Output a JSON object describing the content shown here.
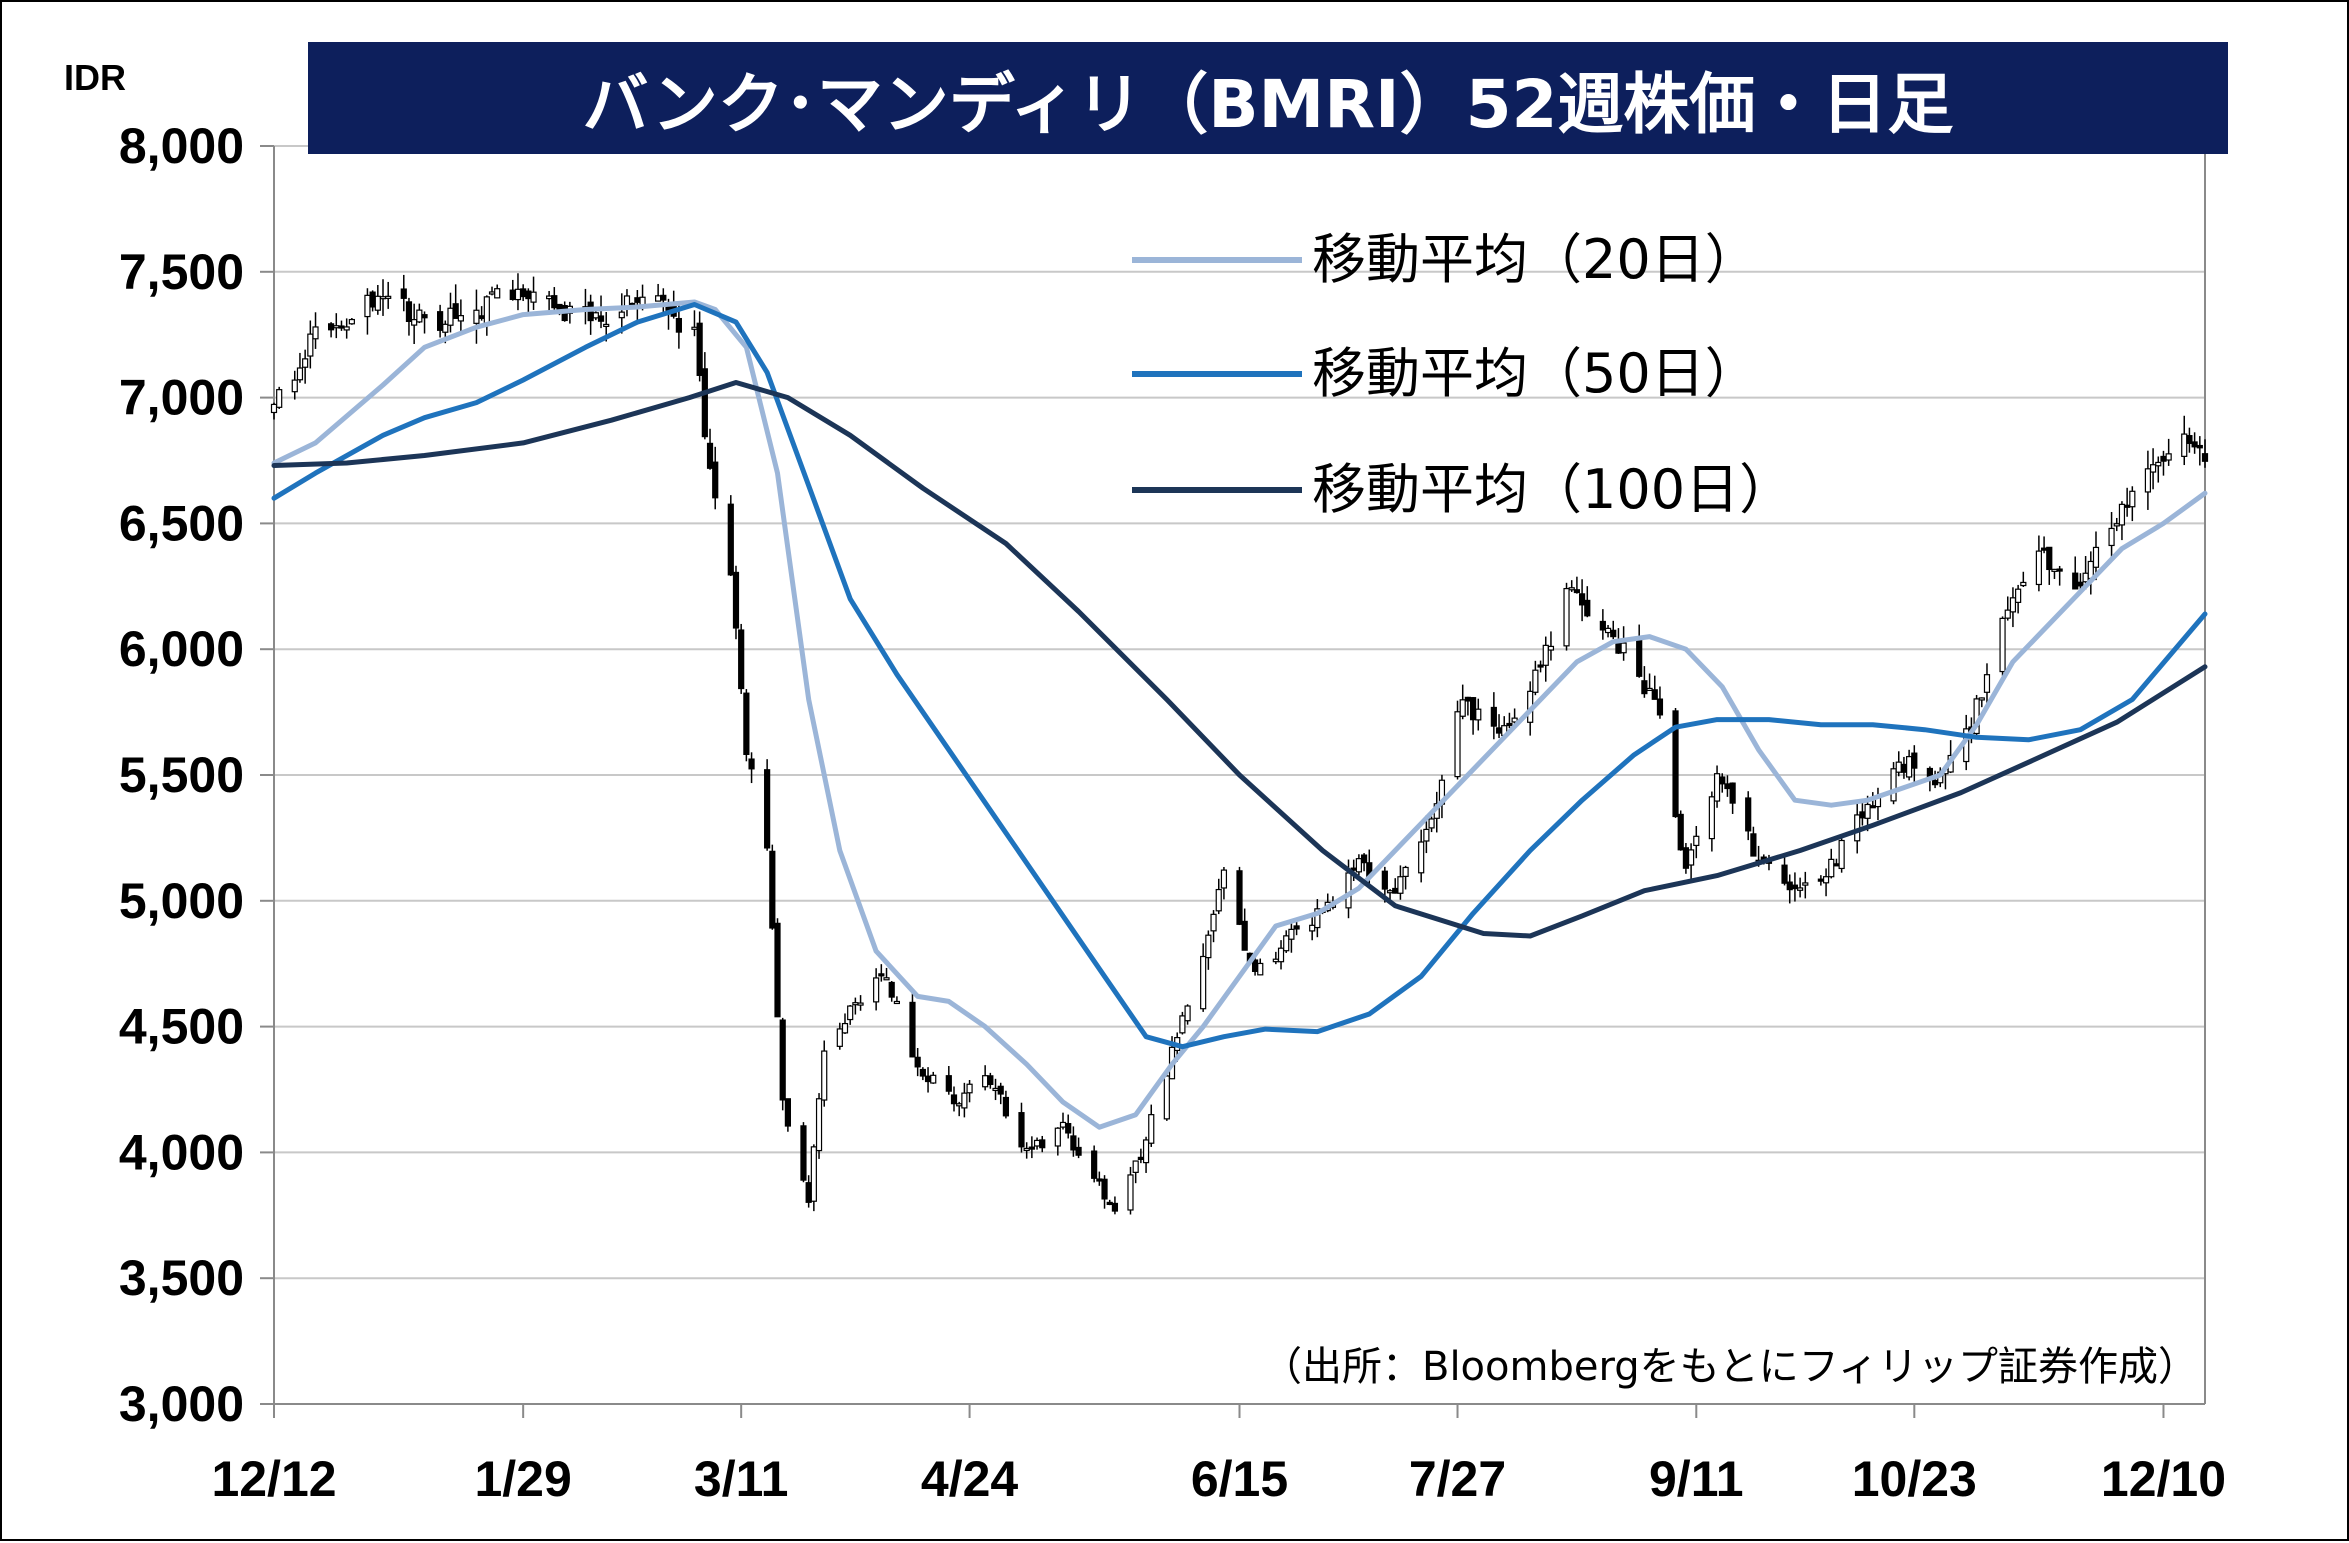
{
  "title": "バンク･マンディリ（BMRI）52週株価・日足",
  "unit": "IDR",
  "source": "（出所：Bloombergをもとにフィリップ証券作成）",
  "colors": {
    "title_bg": "#0d1f5c",
    "candle": "#000000",
    "grid": "#c8c8c8",
    "ma20": "#9bb5d8",
    "ma50": "#1f73bd",
    "ma100": "#1c3557"
  },
  "chart_data": {
    "type": "candlestick",
    "title": "バンク･マンディリ（BMRI）52週株価・日足",
    "ylabel": "IDR",
    "ylim": [
      3000,
      8000
    ],
    "yticks": [
      "8,000",
      "7,500",
      "7,000",
      "6,500",
      "6,000",
      "5,500",
      "5,000",
      "4,500",
      "4,000",
      "3,500",
      "3,000"
    ],
    "ytick_values": [
      8000,
      7500,
      7000,
      6500,
      6000,
      5500,
      5000,
      4500,
      4000,
      3500,
      3000
    ],
    "xlim": [
      "2019-12-12",
      "2020-12-18"
    ],
    "xticks": [
      {
        "label": "12/12",
        "date": "2019-12-12"
      },
      {
        "label": "1/29",
        "date": "2020-01-29"
      },
      {
        "label": "3/11",
        "date": "2020-03-11"
      },
      {
        "label": "4/24",
        "date": "2020-04-24"
      },
      {
        "label": "6/15",
        "date": "2020-06-15"
      },
      {
        "label": "7/27",
        "date": "2020-07-27"
      },
      {
        "label": "9/11",
        "date": "2020-09-11"
      },
      {
        "label": "10/23",
        "date": "2020-10-23"
      },
      {
        "label": "12/10",
        "date": "2020-12-10"
      }
    ],
    "grid": true,
    "legend_position": "top-right",
    "legend": [
      {
        "label": "移動平均（20日）",
        "series": "ma20"
      },
      {
        "label": "移動平均（50日）",
        "series": "ma50"
      },
      {
        "label": "移動平均（100日）",
        "series": "ma100"
      }
    ],
    "price_path": {
      "dates": [
        "2019-12-12",
        "2019-12-20",
        "2020-01-02",
        "2020-01-10",
        "2020-01-20",
        "2020-01-29",
        "2020-02-05",
        "2020-02-14",
        "2020-02-21",
        "2020-03-02",
        "2020-03-05",
        "2020-03-09",
        "2020-03-12",
        "2020-03-16",
        "2020-03-19",
        "2020-03-24",
        "2020-03-27",
        "2020-04-02",
        "2020-04-08",
        "2020-04-14",
        "2020-04-21",
        "2020-04-28",
        "2020-05-05",
        "2020-05-12",
        "2020-05-18",
        "2020-05-22",
        "2020-05-27",
        "2020-06-02",
        "2020-06-08",
        "2020-06-12",
        "2020-06-18",
        "2020-06-24",
        "2020-07-01",
        "2020-07-08",
        "2020-07-15",
        "2020-07-22",
        "2020-07-28",
        "2020-08-04",
        "2020-08-11",
        "2020-08-18",
        "2020-08-24",
        "2020-08-31",
        "2020-09-04",
        "2020-09-09",
        "2020-09-15",
        "2020-09-22",
        "2020-09-29",
        "2020-10-06",
        "2020-10-13",
        "2020-10-20",
        "2020-10-27",
        "2020-11-03",
        "2020-11-09",
        "2020-11-16",
        "2020-11-23",
        "2020-11-30",
        "2020-12-07",
        "2020-12-14",
        "2020-12-18"
      ],
      "closes": [
        6950,
        7250,
        7400,
        7300,
        7350,
        7450,
        7350,
        7300,
        7400,
        7250,
        6700,
        6300,
        5600,
        5200,
        4200,
        3800,
        4400,
        4600,
        4700,
        4350,
        4200,
        4300,
        4000,
        4100,
        3900,
        3750,
        4000,
        4400,
        4800,
        5100,
        4700,
        4850,
        4950,
        5150,
        5050,
        5300,
        5800,
        5650,
        5900,
        6250,
        6100,
        5900,
        5750,
        5100,
        5500,
        5200,
        5050,
        5100,
        5350,
        5550,
        5500,
        5700,
        6100,
        6400,
        6250,
        6500,
        6700,
        6850,
        6780
      ]
    },
    "series": [
      {
        "name": "移動平均（20日）",
        "key": "ma20",
        "dates": [
          "2019-12-12",
          "2019-12-20",
          "2020-01-02",
          "2020-01-10",
          "2020-01-20",
          "2020-01-29",
          "2020-02-10",
          "2020-02-20",
          "2020-03-02",
          "2020-03-06",
          "2020-03-12",
          "2020-03-18",
          "2020-03-24",
          "2020-03-30",
          "2020-04-06",
          "2020-04-14",
          "2020-04-20",
          "2020-04-27",
          "2020-05-05",
          "2020-05-12",
          "2020-05-19",
          "2020-05-26",
          "2020-06-02",
          "2020-06-08",
          "2020-06-15",
          "2020-06-22",
          "2020-06-30",
          "2020-07-08",
          "2020-07-15",
          "2020-07-22",
          "2020-07-29",
          "2020-08-05",
          "2020-08-12",
          "2020-08-19",
          "2020-08-26",
          "2020-09-02",
          "2020-09-09",
          "2020-09-16",
          "2020-09-23",
          "2020-09-30",
          "2020-10-07",
          "2020-10-14",
          "2020-10-21",
          "2020-10-28",
          "2020-11-04",
          "2020-11-11",
          "2020-11-18",
          "2020-11-25",
          "2020-12-02",
          "2020-12-10",
          "2020-12-18"
        ],
        "values": [
          6740,
          6820,
          7050,
          7200,
          7280,
          7330,
          7350,
          7360,
          7380,
          7350,
          7200,
          6700,
          5800,
          5200,
          4800,
          4620,
          4600,
          4500,
          4350,
          4200,
          4100,
          4150,
          4350,
          4500,
          4700,
          4900,
          4950,
          5050,
          5200,
          5350,
          5500,
          5650,
          5800,
          5950,
          6030,
          6050,
          6000,
          5850,
          5600,
          5400,
          5380,
          5400,
          5450,
          5500,
          5700,
          5950,
          6100,
          6250,
          6400,
          6500,
          6620
        ]
      },
      {
        "name": "移動平均（50日）",
        "key": "ma50",
        "dates": [
          "2019-12-12",
          "2019-12-20",
          "2020-01-02",
          "2020-01-10",
          "2020-01-20",
          "2020-01-29",
          "2020-02-10",
          "2020-02-20",
          "2020-03-02",
          "2020-03-10",
          "2020-03-16",
          "2020-03-24",
          "2020-04-01",
          "2020-04-10",
          "2020-04-20",
          "2020-04-30",
          "2020-05-10",
          "2020-05-20",
          "2020-05-28",
          "2020-06-04",
          "2020-06-12",
          "2020-06-20",
          "2020-06-30",
          "2020-07-10",
          "2020-07-20",
          "2020-07-30",
          "2020-08-10",
          "2020-08-20",
          "2020-08-30",
          "2020-09-07",
          "2020-09-15",
          "2020-09-25",
          "2020-10-05",
          "2020-10-15",
          "2020-10-25",
          "2020-11-04",
          "2020-11-14",
          "2020-11-24",
          "2020-12-04",
          "2020-12-18"
        ],
        "values": [
          6600,
          6700,
          6850,
          6920,
          6980,
          7070,
          7200,
          7300,
          7370,
          7300,
          7100,
          6650,
          6200,
          5900,
          5600,
          5300,
          5000,
          4700,
          4460,
          4420,
          4460,
          4490,
          4480,
          4550,
          4700,
          4950,
          5200,
          5400,
          5580,
          5690,
          5720,
          5720,
          5700,
          5700,
          5680,
          5650,
          5640,
          5680,
          5800,
          6140
        ]
      },
      {
        "name": "移動平均（100日）",
        "key": "ma100",
        "dates": [
          "2019-12-12",
          "2019-12-26",
          "2020-01-10",
          "2020-01-29",
          "2020-02-15",
          "2020-03-01",
          "2020-03-10",
          "2020-03-20",
          "2020-04-01",
          "2020-04-15",
          "2020-05-01",
          "2020-05-15",
          "2020-06-01",
          "2020-06-15",
          "2020-07-01",
          "2020-07-15",
          "2020-08-01",
          "2020-08-10",
          "2020-08-20",
          "2020-09-01",
          "2020-09-15",
          "2020-10-01",
          "2020-10-15",
          "2020-11-01",
          "2020-11-15",
          "2020-12-01",
          "2020-12-18"
        ],
        "values": [
          6730,
          6740,
          6770,
          6820,
          6910,
          7000,
          7060,
          7000,
          6850,
          6640,
          6420,
          6150,
          5800,
          5500,
          5200,
          4980,
          4870,
          4860,
          4940,
          5040,
          5100,
          5200,
          5300,
          5430,
          5560,
          5710,
          5930
        ]
      }
    ]
  }
}
